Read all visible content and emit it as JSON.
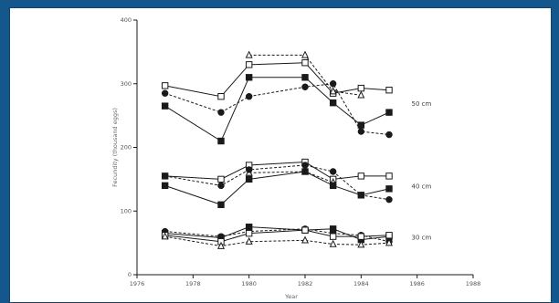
{
  "colors": {
    "background": "#14578c",
    "paper": "#ffffff",
    "ink": "#1a1a1a"
  },
  "chart_data": {
    "type": "line",
    "title": "",
    "xlabel": "Year",
    "ylabel": "Fecundity (thousand eggs)",
    "xlim": [
      1976,
      1988
    ],
    "ylim": [
      0,
      400
    ],
    "xticks": [
      1976,
      1978,
      1980,
      1982,
      1984,
      1986,
      1988
    ],
    "yticks": [
      0,
      100,
      200,
      300,
      400
    ],
    "xtick_labels": [
      "1976",
      "1978",
      "1980",
      "1982",
      "1984",
      "1986",
      "1988"
    ],
    "ytick_labels": [
      "0",
      "100",
      "200",
      "300",
      "400"
    ],
    "group_labels": [
      {
        "text": "50 cm",
        "at": [
          1985.8,
          268
        ]
      },
      {
        "text": "40 cm",
        "at": [
          1985.8,
          138
        ]
      },
      {
        "text": "30 cm",
        "at": [
          1985.8,
          58
        ]
      }
    ],
    "series": [
      {
        "group": "50 cm",
        "marker": "open-square",
        "dash": "solid",
        "x": [
          1977,
          1979,
          1980,
          1982,
          1983,
          1984,
          1985
        ],
        "y": [
          297,
          280,
          330,
          333,
          285,
          293,
          290
        ]
      },
      {
        "group": "50 cm",
        "marker": "open-triangle",
        "dash": "dashed",
        "x": [
          1980,
          1982,
          1983,
          1984
        ],
        "y": [
          345,
          345,
          288,
          282
        ]
      },
      {
        "group": "50 cm",
        "marker": "filled-square",
        "dash": "solid",
        "x": [
          1977,
          1979,
          1980,
          1982,
          1983,
          1984,
          1985
        ],
        "y": [
          265,
          210,
          310,
          310,
          270,
          235,
          255
        ]
      },
      {
        "group": "50 cm",
        "marker": "filled-circle",
        "dash": "dashed",
        "x": [
          1977,
          1979,
          1980,
          1982,
          1983,
          1984,
          1985
        ],
        "y": [
          285,
          255,
          280,
          295,
          300,
          225,
          220
        ]
      },
      {
        "group": "40 cm",
        "marker": "open-square",
        "dash": "solid",
        "x": [
          1977,
          1979,
          1980,
          1982,
          1983,
          1984,
          1985
        ],
        "y": [
          155,
          150,
          172,
          177,
          150,
          155,
          155
        ]
      },
      {
        "group": "40 cm",
        "marker": "open-triangle",
        "dash": "dashed",
        "x": [
          1980,
          1982,
          1983
        ],
        "y": [
          160,
          162,
          145
        ]
      },
      {
        "group": "40 cm",
        "marker": "filled-circle",
        "dash": "dashed",
        "x": [
          1977,
          1979,
          1980,
          1982,
          1983,
          1984,
          1985
        ],
        "y": [
          155,
          140,
          165,
          172,
          162,
          125,
          118
        ]
      },
      {
        "group": "40 cm",
        "marker": "filled-square",
        "dash": "solid",
        "x": [
          1977,
          1979,
          1980,
          1982,
          1983,
          1984,
          1985
        ],
        "y": [
          140,
          110,
          150,
          162,
          140,
          125,
          135
        ]
      },
      {
        "group": "30 cm",
        "marker": "filled-square",
        "dash": "solid",
        "x": [
          1977,
          1979,
          1980,
          1982,
          1983,
          1984,
          1985
        ],
        "y": [
          65,
          58,
          75,
          70,
          72,
          55,
          60
        ]
      },
      {
        "group": "30 cm",
        "marker": "filled-circle",
        "dash": "dashed",
        "x": [
          1977,
          1979,
          1980,
          1982,
          1983,
          1984,
          1985
        ],
        "y": [
          68,
          60,
          68,
          72,
          65,
          62,
          52
        ]
      },
      {
        "group": "30 cm",
        "marker": "open-square",
        "dash": "solid",
        "x": [
          1977,
          1979,
          1980,
          1982,
          1983,
          1984,
          1985
        ],
        "y": [
          62,
          52,
          65,
          70,
          60,
          60,
          62
        ]
      },
      {
        "group": "30 cm",
        "marker": "open-triangle",
        "dash": "dashed",
        "x": [
          1977,
          1979,
          1980,
          1982,
          1983,
          1984,
          1985
        ],
        "y": [
          60,
          45,
          52,
          54,
          48,
          47,
          50
        ]
      }
    ]
  }
}
